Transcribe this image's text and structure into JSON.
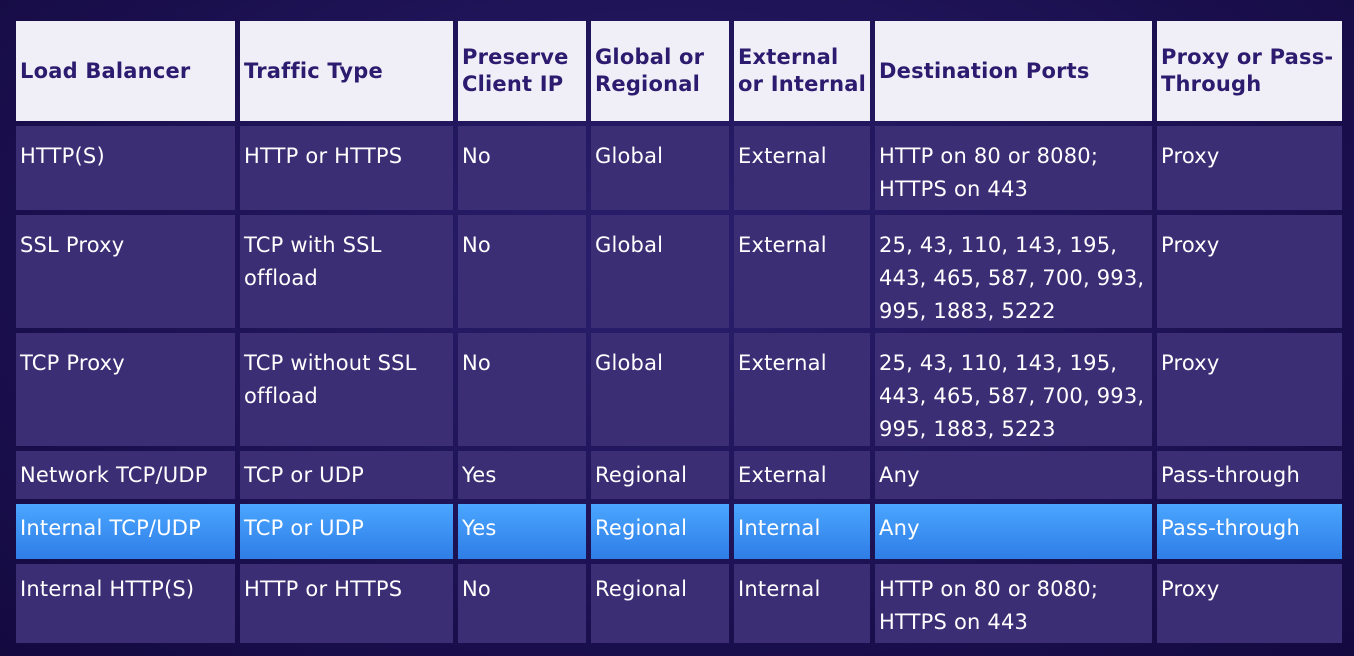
{
  "headers": [
    "Load Balancer",
    "Traffic Type",
    "Preserve Client IP",
    "Global or Regional",
    "External or Internal",
    "Destination Ports",
    "Proxy or Pass-Through"
  ],
  "rows": [
    [
      "HTTP(S)",
      "HTTP or HTTPS",
      "No",
      "Global",
      "External",
      "HTTP on 80 or 8080; HTTPS on 443",
      "Proxy"
    ],
    [
      "SSL Proxy",
      "TCP with SSL offload",
      "No",
      "Global",
      "External",
      "25, 43, 110, 143, 195, 443, 465, 587, 700, 993, 995, 1883, 5222",
      "Proxy"
    ],
    [
      "TCP Proxy",
      "TCP without SSL offload",
      "No",
      "Global",
      "External",
      "25, 43, 110, 143, 195, 443, 465, 587, 700, 993, 995, 1883, 5223",
      "Proxy"
    ],
    [
      "Network TCP/UDP",
      "TCP or UDP",
      "Yes",
      "Regional",
      "External",
      "Any",
      "Pass-through"
    ],
    [
      "Internal TCP/UDP",
      "TCP or UDP",
      "Yes",
      "Regional",
      "Internal",
      "Any",
      "Pass-through"
    ],
    [
      "Internal HTTP(S)",
      "HTTP or HTTPS",
      "No",
      "Regional",
      "Internal",
      "HTTP on 80 or 8080; HTTPS on 443",
      "Proxy"
    ]
  ],
  "highlighted_row_index": 4,
  "colors": {
    "background": "#1a0f4d",
    "header_bg": "#f0eff7",
    "header_text": "#2c1b6e",
    "cell_bg": "#3b2e74",
    "highlight_bg": "#3a8ef5"
  }
}
